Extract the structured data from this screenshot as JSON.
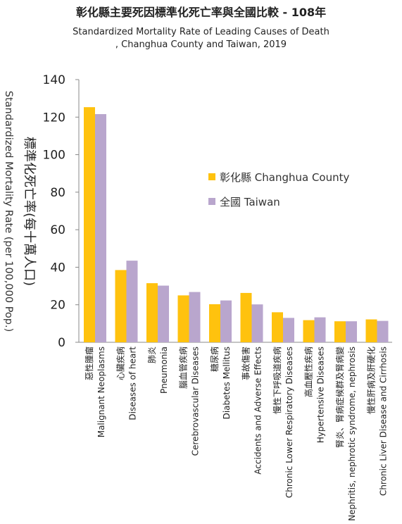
{
  "title": "彰化縣主要死因標準化死亡率與全國比較 - 108年",
  "subtitle_line1": "Standardized Mortality Rate of Leading Causes of Death",
  "subtitle_line2": ", Changhua County and Taiwan, 2019",
  "chart_data": {
    "type": "bar",
    "ylabel": "Standardized Mortality Rate (per 100,000 Pop.)",
    "ylabel_zh": "標準化死亡率(每十萬人口)",
    "ylim": [
      0,
      140
    ],
    "yticks": [
      0,
      20,
      40,
      60,
      80,
      100,
      120,
      140
    ],
    "grid": false,
    "legend_placement": "right, upper-middle",
    "categories": [
      {
        "zh": "惡性腫瘤",
        "en": "Malignant Neoplasms"
      },
      {
        "zh": "心臟疾病",
        "en": "Diseases of heart"
      },
      {
        "zh": "肺炎",
        "en": "Pneumonia"
      },
      {
        "zh": "腦血管疾病",
        "en": "Cerebrovascular Diseases"
      },
      {
        "zh": "糖尿病",
        "en": "Diabetes Mellitus"
      },
      {
        "zh": "事故傷害",
        "en": "Accidents and Adverse Effects"
      },
      {
        "zh": "慢性下呼吸道疾病",
        "en": "Chronic Lower Respiratory Diseases"
      },
      {
        "zh": "高血壓性疾病",
        "en": "Hypertensive Diseases"
      },
      {
        "zh": "腎炎、腎病症候群及腎病變",
        "en": "Nephritis, nephrotic syndrome, nephrosis"
      },
      {
        "zh": "慢性肝病及肝硬化",
        "en": "Chronic Liver Disease and Cirrhosis"
      }
    ],
    "series": [
      {
        "name": "彰化縣 Changhua County",
        "color": "#FFC20E",
        "values": [
          125.3,
          38.5,
          31.5,
          25.0,
          20.3,
          26.3,
          16.0,
          11.8,
          11.2,
          12.2
        ]
      },
      {
        "name": "全國 Taiwan",
        "color": "#B9A6CD",
        "values": [
          121.6,
          43.5,
          30.2,
          26.8,
          22.3,
          20.2,
          13.0,
          13.3,
          11.2,
          11.4
        ]
      }
    ]
  }
}
